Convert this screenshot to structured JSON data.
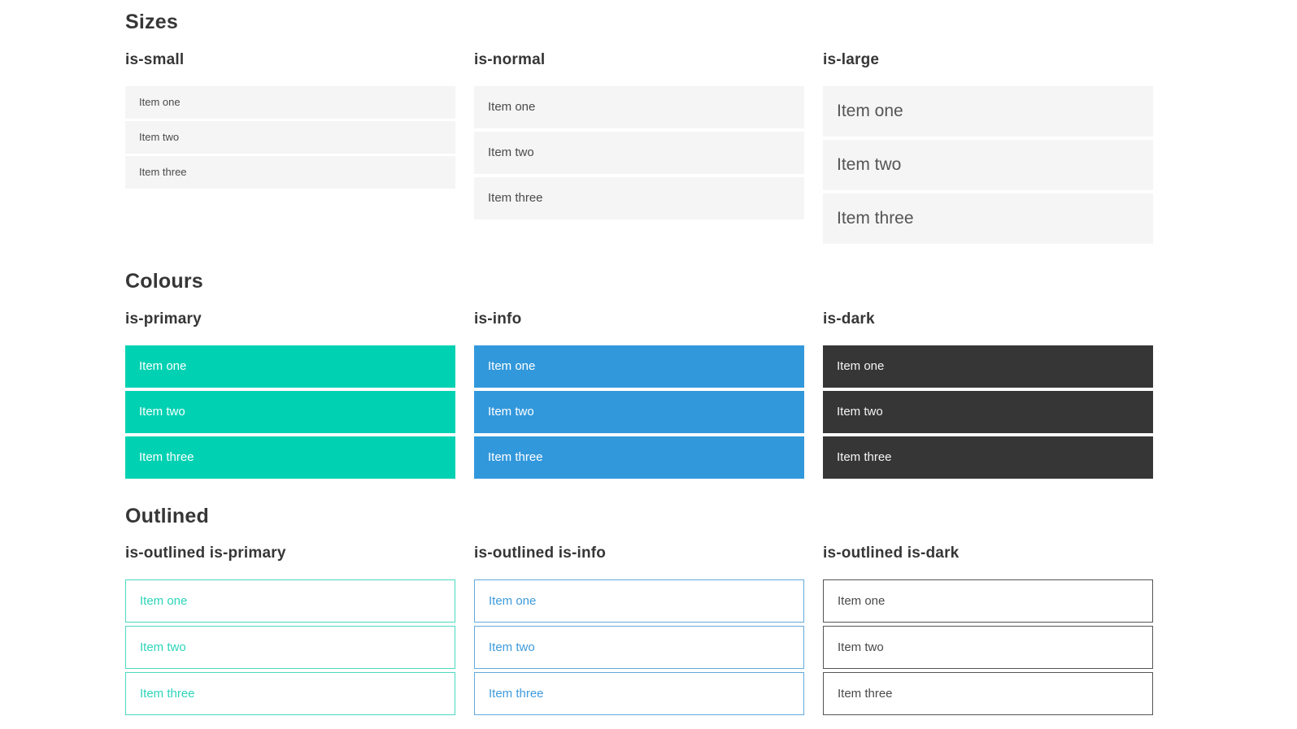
{
  "colors": {
    "primary": "#00d1b2",
    "info": "#3298dc",
    "dark": "#363636",
    "item_background": "#f5f5f5",
    "item_text": "#4a4a4a",
    "heading_text": "#363636",
    "colored_item_text": "#ffffff"
  },
  "sections": [
    {
      "title": "Sizes",
      "groups": [
        {
          "label": "is-small",
          "variant": "small",
          "items": [
            "Item one",
            "Item two",
            "Item three"
          ]
        },
        {
          "label": "is-normal",
          "variant": "normal",
          "items": [
            "Item one",
            "Item two",
            "Item three"
          ]
        },
        {
          "label": "is-large",
          "variant": "large",
          "items": [
            "Item one",
            "Item two",
            "Item three"
          ]
        }
      ]
    },
    {
      "title": "Colours",
      "groups": [
        {
          "label": "is-primary",
          "variant": "primary",
          "items": [
            "Item one",
            "Item two",
            "Item three"
          ]
        },
        {
          "label": "is-info",
          "variant": "info",
          "items": [
            "Item one",
            "Item two",
            "Item three"
          ]
        },
        {
          "label": "is-dark",
          "variant": "dark",
          "items": [
            "Item one",
            "Item two",
            "Item three"
          ]
        }
      ]
    },
    {
      "title": "Outlined",
      "groups": [
        {
          "label": "is-outlined is-primary",
          "variant": "outlined-primary",
          "items": [
            "Item one",
            "Item two",
            "Item three"
          ]
        },
        {
          "label": "is-outlined is-info",
          "variant": "outlined-info",
          "items": [
            "Item one",
            "Item two",
            "Item three"
          ]
        },
        {
          "label": "is-outlined is-dark",
          "variant": "outlined-dark",
          "items": [
            "Item one",
            "Item two",
            "Item three"
          ]
        }
      ]
    }
  ]
}
